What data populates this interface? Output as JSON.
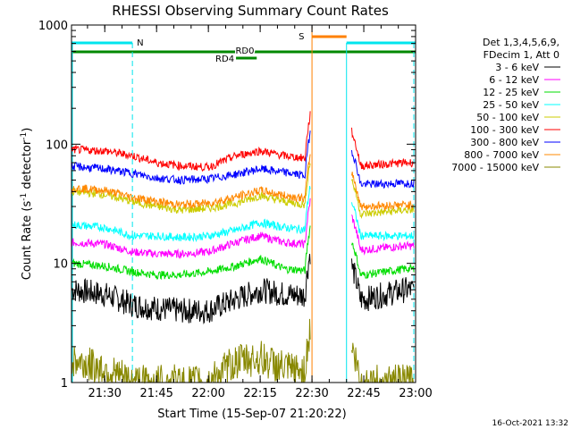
{
  "chart_data": {
    "type": "line",
    "title": "RHESSI Observing Summary Count Rates",
    "xlabel": "Start Time (15-Sep-07 21:20:22)",
    "ylabel_main": "Count Rate (s",
    "ylabel_sup1": "-1",
    "ylabel_mid": " detector",
    "ylabel_sup2": "-1",
    "ylabel_end": ")",
    "footer_date": "16-Oct-2021 13:32",
    "yscale": "log",
    "ylim": [
      1,
      1000
    ],
    "xlim": [
      "21:20:22",
      "23:00:00"
    ],
    "x_ticks": [
      "21:30",
      "21:45",
      "22:00",
      "22:15",
      "22:30",
      "22:45",
      "23:00"
    ],
    "y_ticks": [
      "1",
      "10",
      "100",
      "1000"
    ],
    "legend_header": [
      "Det 1,3,4,5,6,9,",
      "FDecim 1, Att 0"
    ],
    "legend_placement": "right",
    "flag_labels": {
      "night": "N",
      "saa": "S",
      "rd0": "RD0",
      "rd4": "RD4"
    },
    "flags": {
      "night": [
        [
          "21:20:22",
          "21:38"
        ],
        [
          "22:40",
          "23:00"
        ]
      ],
      "saa": [
        [
          "22:30",
          "22:40"
        ]
      ],
      "rd0": [
        [
          "21:20:22",
          "23:00"
        ]
      ],
      "rd4": [
        [
          "22:08",
          "22:14"
        ]
      ]
    },
    "series": [
      {
        "name": "3 - 6 keV",
        "color": "#000000",
        "values": [
          6.0,
          5.5,
          4.5,
          4.2,
          4.0,
          4.0,
          5.0,
          6.0,
          5.5,
          5.0,
          6.0
        ]
      },
      {
        "name": "6 - 12 keV",
        "color": "#ff00ff",
        "values": [
          15.0,
          14.5,
          12.5,
          12.0,
          12.0,
          12.5,
          15.0,
          17.0,
          15.0,
          13.0,
          14.0
        ]
      },
      {
        "name": "12 - 25 keV",
        "color": "#00dd00",
        "values": [
          10.0,
          9.5,
          8.5,
          8.0,
          8.0,
          8.5,
          9.5,
          11.0,
          9.0,
          8.0,
          9.0
        ]
      },
      {
        "name": "25 - 50 keV",
        "color": "#00ffff",
        "values": [
          21.0,
          20.0,
          17.0,
          17.0,
          16.5,
          17.0,
          19.0,
          22.0,
          20.0,
          17.0,
          17.0
        ]
      },
      {
        "name": "50 - 100 keV",
        "color": "#cccc00",
        "values": [
          40.0,
          38.0,
          33.0,
          30.0,
          28.0,
          29.0,
          32.0,
          37.0,
          33.0,
          26.0,
          28.0
        ]
      },
      {
        "name": "100 - 300 keV",
        "color": "#ff0000",
        "values": [
          90.0,
          88.0,
          80.0,
          70.0,
          66.0,
          64.0,
          80.0,
          88.0,
          80.0,
          66.0,
          70.0
        ]
      },
      {
        "name": "300 - 800 keV",
        "color": "#0000ff",
        "values": [
          65.0,
          62.0,
          57.0,
          52.0,
          50.0,
          51.0,
          56.0,
          62.0,
          58.0,
          46.0,
          47.0
        ]
      },
      {
        "name": "800 - 7000 keV",
        "color": "#ff8800",
        "values": [
          43.0,
          41.0,
          36.0,
          33.0,
          31.0,
          32.0,
          36.0,
          41.0,
          37.0,
          30.0,
          31.0
        ]
      },
      {
        "name": "7000 - 15000 keV",
        "color": "#888800",
        "values": [
          1.5,
          1.3,
          1.0,
          1.0,
          1.0,
          1.0,
          1.5,
          1.6,
          1.3,
          1.0,
          1.0
        ]
      }
    ],
    "x_samples": [
      "21:21",
      "21:30",
      "21:38",
      "21:45",
      "21:52",
      "22:00",
      "22:08",
      "22:15",
      "22:22",
      "22:45",
      "22:57"
    ]
  }
}
